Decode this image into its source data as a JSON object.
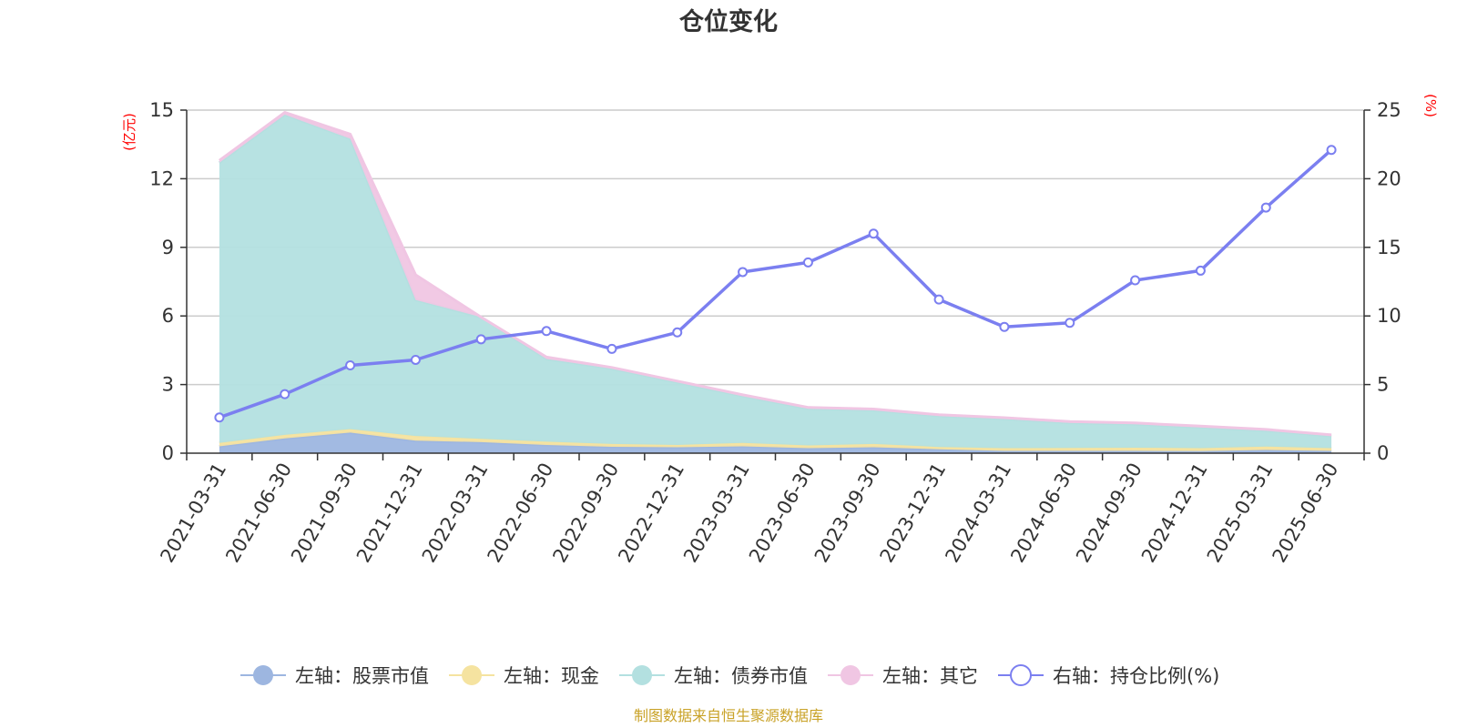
{
  "chart_data": {
    "type": "area",
    "title": "仓位变化",
    "left_unit": "(亿元)",
    "right_unit": "(%)",
    "x": [
      "2021-03-31",
      "2021-06-30",
      "2021-09-30",
      "2021-12-31",
      "2022-03-31",
      "2022-06-30",
      "2022-09-30",
      "2022-12-31",
      "2023-03-31",
      "2023-06-30",
      "2023-09-30",
      "2023-12-31",
      "2024-03-31",
      "2024-06-30",
      "2024-09-30",
      "2024-12-31",
      "2025-03-31",
      "2025-06-30"
    ],
    "left_axis": {
      "min": 0,
      "max": 15,
      "ticks": [
        "0",
        "3",
        "6",
        "9",
        "12",
        "15"
      ]
    },
    "right_axis": {
      "min": 0,
      "max": 25,
      "ticks": [
        "0",
        "5",
        "10",
        "15",
        "20",
        "25"
      ]
    },
    "stacked_series": [
      {
        "name": "左轴：股票市值",
        "color": "#9db6e0",
        "values": [
          0.3,
          0.65,
          0.9,
          0.55,
          0.48,
          0.36,
          0.28,
          0.26,
          0.3,
          0.22,
          0.26,
          0.17,
          0.1,
          0.1,
          0.1,
          0.09,
          0.14,
          0.1
        ]
      },
      {
        "name": "左轴：现金",
        "color": "#f5e3a0",
        "values": [
          0.15,
          0.15,
          0.15,
          0.2,
          0.15,
          0.14,
          0.12,
          0.1,
          0.15,
          0.12,
          0.14,
          0.1,
          0.12,
          0.13,
          0.14,
          0.13,
          0.15,
          0.12
        ]
      },
      {
        "name": "左轴：债券市值",
        "color": "#b3e0e0",
        "values": [
          12.25,
          14.0,
          12.7,
          5.95,
          5.32,
          3.62,
          3.3,
          2.74,
          2.05,
          1.61,
          1.48,
          1.36,
          1.28,
          1.1,
          1.03,
          0.91,
          0.7,
          0.53
        ]
      },
      {
        "name": "左轴：其它",
        "color": "#f0c6e3",
        "values": [
          0.1,
          0.1,
          0.2,
          1.1,
          0.0,
          0.08,
          0.05,
          0.05,
          0.05,
          0.05,
          0.05,
          0.05,
          0.05,
          0.05,
          0.05,
          0.05,
          0.05,
          0.05
        ]
      }
    ],
    "line_series": {
      "name": "右轴：持仓比例(%)",
      "color": "#7b7ff0",
      "values": [
        2.6,
        4.3,
        6.4,
        6.8,
        8.3,
        8.9,
        7.6,
        8.8,
        13.2,
        13.9,
        16.0,
        11.2,
        9.2,
        9.5,
        12.6,
        13.3,
        17.9,
        22.1
      ]
    },
    "legend_position": "bottom",
    "grid": true
  },
  "footer": {
    "source": "制图数据来自恒生聚源数据库"
  }
}
